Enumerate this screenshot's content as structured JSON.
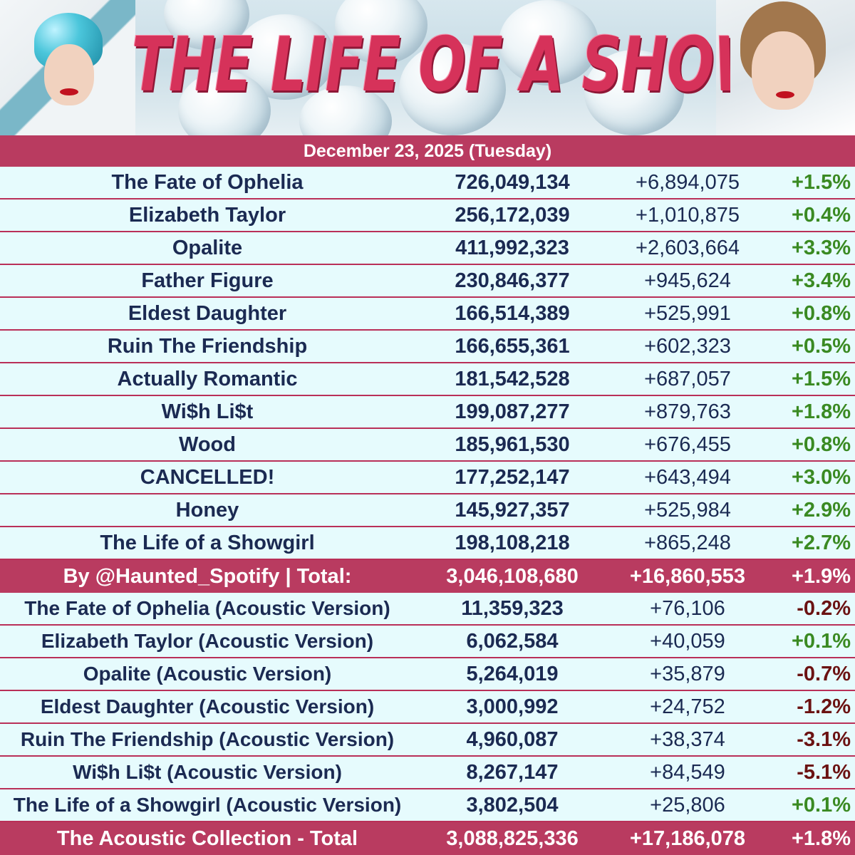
{
  "banner": {
    "title": "THE LIFE OF A SHOWGIRL"
  },
  "date_label": "December 23, 2025 (Tuesday)",
  "songs": [
    {
      "title": "The Fate of Ophelia",
      "total": "726,049,134",
      "daily": "+6,894,075",
      "pct": "+1.5%",
      "trend": "up"
    },
    {
      "title": "Elizabeth Taylor",
      "total": "256,172,039",
      "daily": "+1,010,875",
      "pct": "+0.4%",
      "trend": "up"
    },
    {
      "title": "Opalite",
      "total": "411,992,323",
      "daily": "+2,603,664",
      "pct": "+3.3%",
      "trend": "up"
    },
    {
      "title": "Father Figure",
      "total": "230,846,377",
      "daily": "+945,624",
      "pct": "+3.4%",
      "trend": "up"
    },
    {
      "title": "Eldest Daughter",
      "total": "166,514,389",
      "daily": "+525,991",
      "pct": "+0.8%",
      "trend": "up"
    },
    {
      "title": "Ruin The Friendship",
      "total": "166,655,361",
      "daily": "+602,323",
      "pct": "+0.5%",
      "trend": "up"
    },
    {
      "title": "Actually Romantic",
      "total": "181,542,528",
      "daily": "+687,057",
      "pct": "+1.5%",
      "trend": "up"
    },
    {
      "title": "Wi$h Li$t",
      "total": "199,087,277",
      "daily": "+879,763",
      "pct": "+1.8%",
      "trend": "up"
    },
    {
      "title": "Wood",
      "total": "185,961,530",
      "daily": "+676,455",
      "pct": "+0.8%",
      "trend": "up"
    },
    {
      "title": "CANCELLED!",
      "total": "177,252,147",
      "daily": "+643,494",
      "pct": "+3.0%",
      "trend": "up"
    },
    {
      "title": "Honey",
      "total": "145,927,357",
      "daily": "+525,984",
      "pct": "+2.9%",
      "trend": "up"
    },
    {
      "title": "The Life of a Showgirl",
      "total": "198,108,218",
      "daily": "+865,248",
      "pct": "+2.7%",
      "trend": "up"
    }
  ],
  "album_total": {
    "label": "By @Haunted_Spotify | Total:",
    "total": "3,046,108,680",
    "daily": "+16,860,553",
    "pct": "+1.9%"
  },
  "acoustic_songs": [
    {
      "title": "The Fate of Ophelia (Acoustic Version)",
      "total": "11,359,323",
      "daily": "+76,106",
      "pct": "-0.2%",
      "trend": "down"
    },
    {
      "title": "Elizabeth Taylor (Acoustic Version)",
      "total": "6,062,584",
      "daily": "+40,059",
      "pct": "+0.1%",
      "trend": "up"
    },
    {
      "title": "Opalite (Acoustic Version)",
      "total": "5,264,019",
      "daily": "+35,879",
      "pct": "-0.7%",
      "trend": "down"
    },
    {
      "title": "Eldest Daughter (Acoustic Version)",
      "total": "3,000,992",
      "daily": "+24,752",
      "pct": "-1.2%",
      "trend": "down"
    },
    {
      "title": "Ruin The Friendship (Acoustic Version)",
      "total": "4,960,087",
      "daily": "+38,374",
      "pct": "-3.1%",
      "trend": "down"
    },
    {
      "title": "Wi$h Li$t (Acoustic Version)",
      "total": "8,267,147",
      "daily": "+84,549",
      "pct": "-5.1%",
      "trend": "down"
    },
    {
      "title": "The Life of a Showgirl (Acoustic Version)",
      "total": "3,802,504",
      "daily": "+25,806",
      "pct": "+0.1%",
      "trend": "up"
    }
  ],
  "acoustic_total": {
    "label": "The Acoustic Collection - Total",
    "total": "3,088,825,336",
    "daily": "+17,186,078",
    "pct": "+1.8%"
  },
  "colors": {
    "accent_maroon": "#b93b60",
    "row_background": "#e6fbfd",
    "text_navy": "#1b2a52",
    "positive_green": "#3a8a22",
    "negative_darkred": "#6b1212",
    "title_pink": "#d6325a"
  }
}
